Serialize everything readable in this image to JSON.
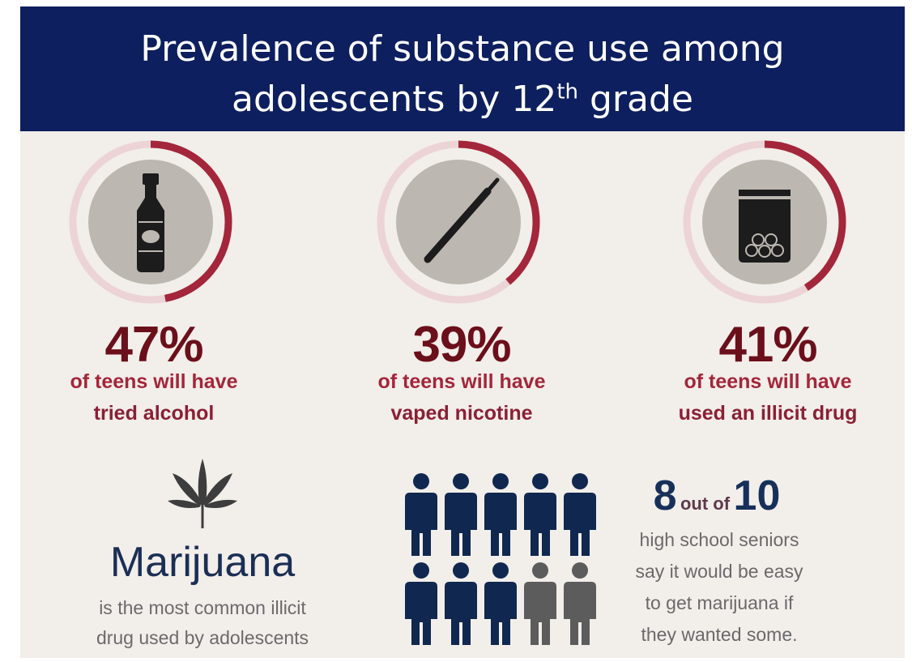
{
  "header": {
    "title_line1": "Prevalence of substance use among",
    "title_line2_pre": "adolescents by 12",
    "title_line2_sup": "th",
    "title_line2_post": " grade"
  },
  "stats": [
    {
      "value": 47,
      "percent": "47%",
      "line1": "of teens will have",
      "line2": "tried alcohol",
      "icon": "bottle-icon"
    },
    {
      "value": 39,
      "percent": "39%",
      "line1": "of teens will have",
      "line2": "vaped nicotine",
      "icon": "vape-pen-icon"
    },
    {
      "value": 41,
      "percent": "41%",
      "line1": "of teens will have",
      "line2": "used an illicit drug",
      "icon": "pill-bag-icon"
    }
  ],
  "marijuana": {
    "title": "Marijuana",
    "desc_line1": "is the most common illicit",
    "desc_line2": "drug used by adolescents",
    "icon": "cannabis-leaf-icon"
  },
  "ratio": {
    "numerator": "8",
    "middle": "out of",
    "denominator": "10",
    "highlighted_people": 8,
    "total_people": 10,
    "line1": "high school seniors",
    "line2": "say it would be easy",
    "line3": "to get marijuana if",
    "line4": "they wanted some."
  },
  "colors": {
    "banner": "#0d1f5e",
    "ring_fill": "#a3263a",
    "ring_track": "#ecd3d6",
    "person_highlight": "#10284f",
    "person_other": "#5c5c5c"
  }
}
